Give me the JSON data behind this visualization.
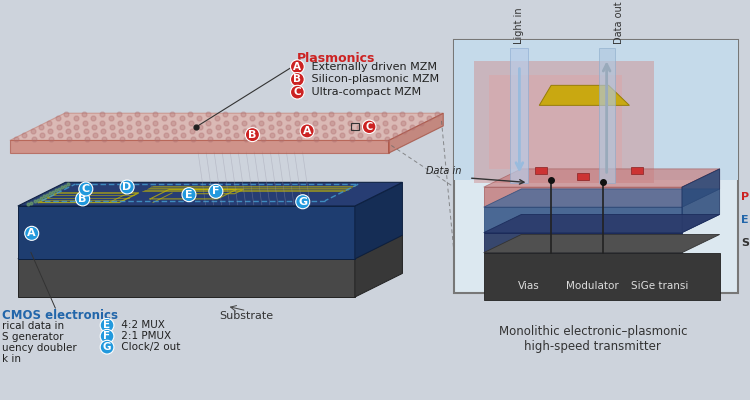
{
  "bg_color": "#cdd3dc",
  "title": "Monolithic electronic–plasmonic\nhigh-speed transmitter",
  "plasmonics_label": "Plasmonics",
  "plasmonics_items": [
    {
      "letter": "A",
      "text": "Externally driven MZM"
    },
    {
      "letter": "B",
      "text": "Silicon-plasmonic MZM"
    },
    {
      "letter": "C",
      "text": "Ultra-compact MZM"
    }
  ],
  "cmos_label": "CMOS electronics",
  "cmos_items_left": [
    "rical data in",
    "S generator",
    "uency doubler",
    "k in"
  ],
  "cmos_items_right": [
    {
      "letter": "E",
      "text": "4:2 MUX"
    },
    {
      "letter": "F",
      "text": "2:1 PMUX"
    },
    {
      "letter": "G",
      "text": "Clock/2 out"
    }
  ],
  "substrate_label": "Substrate",
  "inset_labels": {
    "light_in": "Light in",
    "data_out": "Data out",
    "data_in": "Data in",
    "vias": "Vias",
    "modulator": "Modulator",
    "sige": "SiGe transi",
    "p_label": "P",
    "e_label": "E",
    "s_label": "S"
  }
}
